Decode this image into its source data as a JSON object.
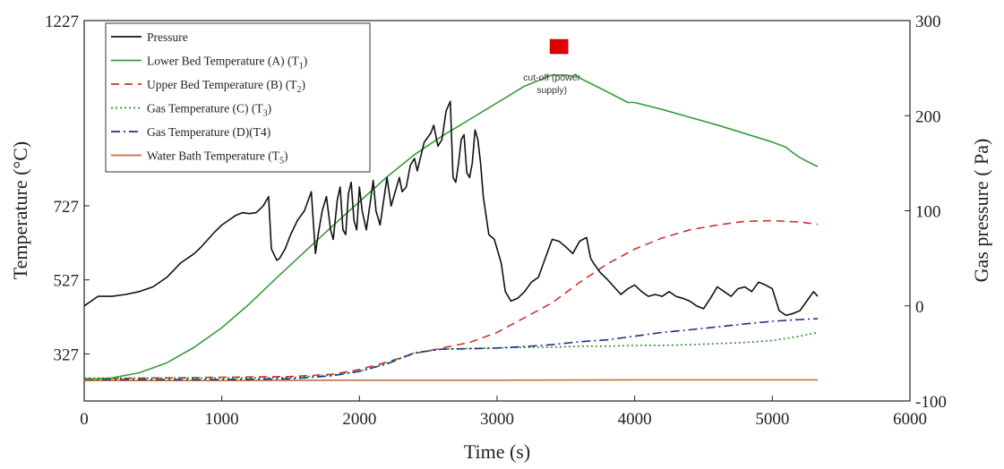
{
  "chart_data": {
    "type": "line",
    "xlabel": "Time (s)",
    "ylabel_left": "Temperature (°C)",
    "ylabel_right": "Gas pressure ( Pa)",
    "x_ticks": [
      0,
      1000,
      2000,
      3000,
      4000,
      5000,
      6000
    ],
    "y_left_ticks": [
      327,
      527,
      727,
      1227
    ],
    "y_right_ticks": [
      -100,
      0,
      100,
      200,
      300
    ],
    "xlim": [
      0,
      6000
    ],
    "ylim_left": [
      200,
      1227
    ],
    "ylim_right": [
      -100,
      300
    ],
    "grid": false,
    "legend_position": "top-left",
    "annotation": {
      "text_line1": "cut-off (power",
      "text_line2": "supply)",
      "x": 3450,
      "marker_color": "#e00000"
    },
    "series": [
      {
        "name": "Pressure",
        "axis": "right",
        "color": "#111111",
        "dash": "",
        "x": [
          0,
          100,
          200,
          300,
          400,
          500,
          600,
          700,
          800,
          850,
          900,
          950,
          1000,
          1050,
          1100,
          1150,
          1200,
          1250,
          1300,
          1340,
          1360,
          1400,
          1420,
          1460,
          1500,
          1550,
          1600,
          1650,
          1680,
          1700,
          1730,
          1760,
          1790,
          1810,
          1840,
          1860,
          1880,
          1900,
          1920,
          1940,
          1960,
          1980,
          2000,
          2020,
          2050,
          2080,
          2100,
          2120,
          2150,
          2180,
          2200,
          2230,
          2260,
          2290,
          2310,
          2340,
          2370,
          2400,
          2420,
          2450,
          2470,
          2500,
          2520,
          2540,
          2570,
          2600,
          2630,
          2660,
          2680,
          2700,
          2720,
          2740,
          2760,
          2780,
          2800,
          2820,
          2840,
          2860,
          2880,
          2900,
          2940,
          2980,
          3000,
          3030,
          3060,
          3100,
          3150,
          3200,
          3250,
          3300,
          3350,
          3400,
          3450,
          3500,
          3550,
          3600,
          3650,
          3680,
          3700,
          3750,
          3800,
          3850,
          3900,
          3950,
          4000,
          4050,
          4100,
          4150,
          4200,
          4250,
          4300,
          4350,
          4400,
          4450,
          4500,
          4550,
          4600,
          4650,
          4700,
          4750,
          4800,
          4850,
          4900,
          4950,
          5000,
          5050,
          5100,
          5150,
          5200,
          5250,
          5300,
          5330
        ],
        "y": [
          0,
          10,
          10,
          12,
          15,
          20,
          30,
          45,
          55,
          62,
          70,
          78,
          85,
          90,
          95,
          98,
          97,
          98,
          105,
          115,
          60,
          48,
          50,
          60,
          75,
          90,
          100,
          120,
          55,
          75,
          100,
          115,
          80,
          70,
          112,
          125,
          80,
          75,
          118,
          130,
          90,
          80,
          125,
          100,
          80,
          110,
          132,
          100,
          85,
          115,
          135,
          105,
          120,
          135,
          120,
          125,
          148,
          155,
          142,
          160,
          172,
          178,
          182,
          190,
          168,
          175,
          205,
          215,
          135,
          130,
          150,
          175,
          180,
          140,
          135,
          150,
          185,
          175,
          150,
          115,
          75,
          70,
          60,
          45,
          15,
          5,
          8,
          15,
          25,
          30,
          50,
          70,
          68,
          62,
          55,
          68,
          72,
          50,
          45,
          35,
          28,
          20,
          12,
          18,
          22,
          15,
          10,
          12,
          10,
          15,
          10,
          8,
          5,
          0,
          -3,
          8,
          20,
          15,
          10,
          18,
          20,
          15,
          25,
          22,
          18,
          -5,
          -10,
          -8,
          -5,
          5,
          15,
          10
        ]
      },
      {
        "name": "Lower Bed Temperature (A) (T1)",
        "axis": "left",
        "color": "#3a9a3a",
        "dash": "",
        "x": [
          0,
          200,
          400,
          600,
          800,
          1000,
          1200,
          1400,
          1600,
          1800,
          2000,
          2200,
          2400,
          2600,
          2800,
          3000,
          3200,
          3400,
          3500,
          3550,
          3570,
          3600,
          3800,
          3950,
          4000,
          4200,
          4400,
          4600,
          4800,
          5000,
          5100,
          5150,
          5200,
          5300,
          5330
        ],
        "y": [
          258,
          262,
          276,
          303,
          345,
          398,
          462,
          533,
          602,
          671,
          738,
          805,
          865,
          915,
          960,
          1005,
          1050,
          1080,
          1080,
          1077,
          1082,
          1072,
          1035,
          1006,
          1006,
          987,
          966,
          945,
          922,
          899,
          885,
          870,
          857,
          838,
          833
        ]
      },
      {
        "name": "Upper Bed Temperature  (B) (T2)",
        "axis": "left",
        "color": "#cc3333",
        "dash": "9,6",
        "x": [
          0,
          500,
          1000,
          1500,
          1800,
          2000,
          2200,
          2400,
          2600,
          2800,
          3000,
          3200,
          3400,
          3600,
          3800,
          4000,
          4200,
          4400,
          4600,
          4800,
          5000,
          5200,
          5330
        ],
        "y": [
          260,
          262,
          264,
          266,
          272,
          285,
          305,
          328,
          343,
          358,
          385,
          425,
          465,
          520,
          570,
          610,
          640,
          662,
          675,
          685,
          687,
          683,
          677
        ]
      },
      {
        "name": "Gas Temperature (C) (T3)",
        "axis": "left",
        "color": "#2e8b2e",
        "dash": "2,3",
        "x": [
          0,
          500,
          1000,
          1500,
          1800,
          2000,
          2200,
          2400,
          2600,
          2800,
          3000,
          3200,
          3400,
          3600,
          3800,
          4000,
          4200,
          4400,
          4600,
          4800,
          5000,
          5200,
          5330
        ],
        "y": [
          262,
          262,
          262,
          263,
          270,
          280,
          302,
          330,
          340,
          342,
          343,
          345,
          345,
          348,
          348,
          350,
          350,
          352,
          355,
          358,
          363,
          375,
          385
        ]
      },
      {
        "name": "Gas Temperature (D)(T4)",
        "axis": "left",
        "color": "#1f2f8a",
        "dash": "10,4,2,4",
        "x": [
          0,
          500,
          1000,
          1500,
          1800,
          2000,
          2200,
          2400,
          2600,
          2800,
          3000,
          3200,
          3400,
          3600,
          3800,
          4000,
          4200,
          4400,
          4600,
          4800,
          5000,
          5200,
          5330
        ],
        "y": [
          258,
          258,
          258,
          260,
          268,
          280,
          300,
          330,
          340,
          341,
          343,
          347,
          352,
          360,
          365,
          375,
          385,
          392,
          400,
          408,
          415,
          420,
          422
        ]
      },
      {
        "name": "Water Bath Temperature (T5)",
        "axis": "left",
        "color": "#c2703d",
        "dash": "",
        "x": [
          0,
          1000,
          2000,
          3000,
          4000,
          5000,
          5330
        ],
        "y": [
          255,
          255,
          256,
          256,
          257,
          257,
          257
        ]
      }
    ]
  },
  "legend_labels": [
    {
      "text": "Pressure",
      "sub": ""
    },
    {
      "text": "Lower Bed Temperature (A) (T",
      "sub": "1",
      "tail": ")"
    },
    {
      "text": "Upper Bed Temperature  (B) (T",
      "sub": "2",
      "tail": ")"
    },
    {
      "text": "Gas Temperature (C) (T",
      "sub": "3",
      "tail": ")"
    },
    {
      "text": "Gas Temperature (D)(T4)",
      "sub": "",
      "tail": ""
    },
    {
      "text": "Water Bath Temperature (T",
      "sub": "5",
      "tail": ")"
    }
  ]
}
